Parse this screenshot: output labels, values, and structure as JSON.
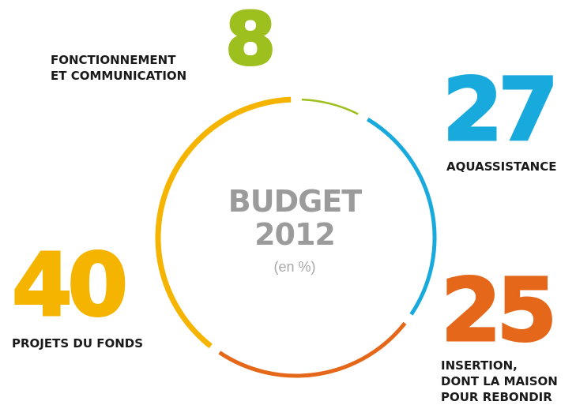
{
  "chart_data": {
    "type": "pie",
    "style": "donut-ring",
    "title": "BUDGET",
    "year": "2012",
    "unit": "(en %)",
    "slices": [
      {
        "label": "FONCTIONNEMENT\nET COMMUNICATION",
        "value": 8,
        "color": "#9dc01f"
      },
      {
        "label": "AQUASSISTANCE",
        "value": 27,
        "color": "#18a9dd"
      },
      {
        "label": "INSERTION,\nDONT LA MAISON\nPOUR REBONDIR",
        "value": 25,
        "color": "#e5671a"
      },
      {
        "label": "PROJETS DU FONDS",
        "value": 40,
        "color": "#f5b400"
      }
    ]
  }
}
